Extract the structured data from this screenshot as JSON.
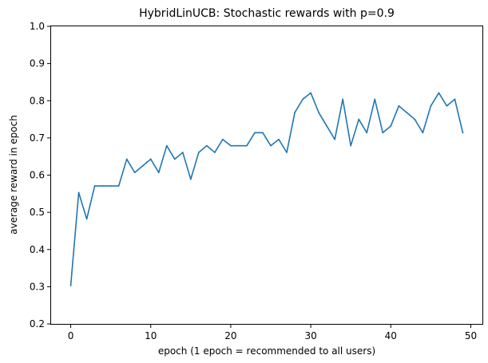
{
  "chart_data": {
    "type": "line",
    "title": "HybridLinUCB: Stochastic rewards with p=0.9",
    "xlabel": "epoch (1 epoch = recommended to all users)",
    "ylabel": "average reward in epoch",
    "xlim": [
      -2.45,
      51.45
    ],
    "ylim": [
      0.2,
      1.0
    ],
    "xticks": [
      0,
      10,
      20,
      30,
      40,
      50
    ],
    "xtick_labels": [
      "0",
      "10",
      "20",
      "30",
      "40",
      "50"
    ],
    "yticks": [
      0.2,
      0.3,
      0.4,
      0.5,
      0.6,
      0.7,
      0.8,
      0.9,
      1.0
    ],
    "ytick_labels": [
      "0.2",
      "0.3",
      "0.4",
      "0.5",
      "0.6",
      "0.7",
      "0.8",
      "0.9",
      "1.0"
    ],
    "grid": false,
    "series": [
      {
        "color": "#1f77b4",
        "x": [
          0,
          1,
          2,
          3,
          4,
          5,
          6,
          7,
          8,
          9,
          10,
          11,
          12,
          13,
          14,
          15,
          16,
          17,
          18,
          19,
          20,
          21,
          22,
          23,
          24,
          25,
          26,
          27,
          28,
          29,
          30,
          31,
          32,
          33,
          34,
          35,
          36,
          37,
          38,
          39,
          40,
          41,
          42,
          43,
          44,
          45,
          46,
          47,
          48,
          49
        ],
        "y": [
          0.303,
          0.553,
          0.482,
          0.571,
          0.571,
          0.571,
          0.571,
          0.643,
          0.607,
          0.625,
          0.643,
          0.607,
          0.679,
          0.643,
          0.661,
          0.589,
          0.661,
          0.679,
          0.661,
          0.696,
          0.679,
          0.679,
          0.679,
          0.714,
          0.714,
          0.679,
          0.696,
          0.661,
          0.768,
          0.804,
          0.821,
          0.768,
          0.732,
          0.696,
          0.804,
          0.679,
          0.75,
          0.714,
          0.804,
          0.714,
          0.732,
          0.786,
          0.768,
          0.75,
          0.714,
          0.786,
          0.821,
          0.786,
          0.804,
          0.714
        ]
      }
    ]
  }
}
